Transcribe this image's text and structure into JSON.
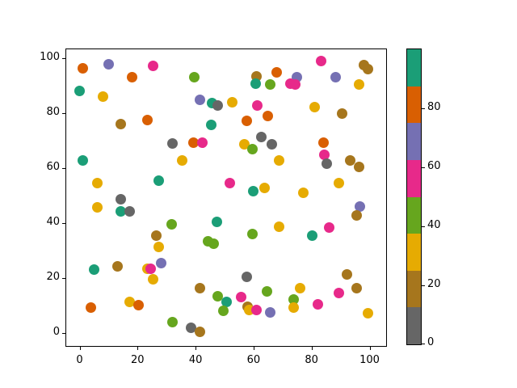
{
  "chart_data": {
    "type": "scatter",
    "title": "",
    "xlabel": "",
    "ylabel": "",
    "xlim": [
      -5,
      105
    ],
    "ylim": [
      -5,
      105
    ],
    "xticks": [
      0,
      20,
      40,
      60,
      80,
      100
    ],
    "yticks": [
      0,
      20,
      40,
      60,
      80,
      100
    ],
    "grid": false,
    "legend": "none",
    "marker": "circle",
    "palette": {
      "teal": "#1b9e77",
      "orange": "#d95f02",
      "purple": "#7570b3",
      "magenta": "#e7298a",
      "green": "#66a61e",
      "gold": "#e6ab02",
      "brown": "#a6761d",
      "gray": "#666666"
    },
    "colorbar": {
      "segments_bottom_to_top": [
        "gray",
        "brown",
        "gold",
        "green",
        "magenta",
        "purple",
        "orange",
        "teal"
      ],
      "ticks": [
        0,
        20,
        40,
        60,
        80
      ],
      "vmin": 0,
      "vmax": 100,
      "position": "right"
    },
    "points": [
      {
        "x": 1.0,
        "y": 96.4,
        "c": "orange"
      },
      {
        "x": 10.0,
        "y": 97.9,
        "c": "purple"
      },
      {
        "x": 25.3,
        "y": 97.1,
        "c": "magenta"
      },
      {
        "x": 18.2,
        "y": 93.1,
        "c": "orange"
      },
      {
        "x": 0.1,
        "y": 88.0,
        "c": "teal"
      },
      {
        "x": 8.1,
        "y": 85.9,
        "c": "gold"
      },
      {
        "x": 14.2,
        "y": 75.9,
        "c": "brown"
      },
      {
        "x": 23.3,
        "y": 77.6,
        "c": "orange"
      },
      {
        "x": 39.6,
        "y": 93.1,
        "c": "green"
      },
      {
        "x": 60.9,
        "y": 93.3,
        "c": "brown"
      },
      {
        "x": 67.9,
        "y": 95.0,
        "c": "orange"
      },
      {
        "x": 60.7,
        "y": 90.7,
        "c": "teal"
      },
      {
        "x": 65.8,
        "y": 90.4,
        "c": "green"
      },
      {
        "x": 41.6,
        "y": 85.0,
        "c": "purple"
      },
      {
        "x": 45.6,
        "y": 83.7,
        "c": "teal"
      },
      {
        "x": 47.7,
        "y": 82.9,
        "c": "gray"
      },
      {
        "x": 52.6,
        "y": 83.9,
        "c": "gold"
      },
      {
        "x": 61.2,
        "y": 82.9,
        "c": "magenta"
      },
      {
        "x": 64.9,
        "y": 79.1,
        "c": "orange"
      },
      {
        "x": 45.5,
        "y": 75.8,
        "c": "teal"
      },
      {
        "x": 57.7,
        "y": 77.1,
        "c": "orange"
      },
      {
        "x": 62.8,
        "y": 71.4,
        "c": "gray"
      },
      {
        "x": 83.2,
        "y": 98.9,
        "c": "magenta"
      },
      {
        "x": 98.0,
        "y": 97.4,
        "c": "brown"
      },
      {
        "x": 99.4,
        "y": 95.9,
        "c": "brown"
      },
      {
        "x": 75.0,
        "y": 93.1,
        "c": "purple"
      },
      {
        "x": 72.8,
        "y": 90.6,
        "c": "magenta"
      },
      {
        "x": 74.5,
        "y": 90.3,
        "c": "magenta"
      },
      {
        "x": 88.4,
        "y": 93.0,
        "c": "purple"
      },
      {
        "x": 96.5,
        "y": 90.4,
        "c": "gold"
      },
      {
        "x": 81.1,
        "y": 82.1,
        "c": "gold"
      },
      {
        "x": 90.4,
        "y": 79.9,
        "c": "brown"
      },
      {
        "x": 84.1,
        "y": 69.4,
        "c": "orange"
      },
      {
        "x": 39.4,
        "y": 69.3,
        "c": "orange"
      },
      {
        "x": 42.3,
        "y": 69.3,
        "c": "magenta"
      },
      {
        "x": 56.8,
        "y": 68.8,
        "c": "gold"
      },
      {
        "x": 31.9,
        "y": 69.0,
        "c": "gray"
      },
      {
        "x": 1.0,
        "y": 62.7,
        "c": "teal"
      },
      {
        "x": 6.1,
        "y": 54.5,
        "c": "gold"
      },
      {
        "x": 27.3,
        "y": 55.5,
        "c": "teal"
      },
      {
        "x": 14.2,
        "y": 48.6,
        "c": "gray"
      },
      {
        "x": 6.1,
        "y": 45.7,
        "c": "gold"
      },
      {
        "x": 14.2,
        "y": 44.4,
        "c": "teal"
      },
      {
        "x": 17.3,
        "y": 44.4,
        "c": "gray"
      },
      {
        "x": 31.7,
        "y": 39.7,
        "c": "green"
      },
      {
        "x": 26.4,
        "y": 35.4,
        "c": "brown"
      },
      {
        "x": 27.2,
        "y": 31.2,
        "c": "gold"
      },
      {
        "x": 59.5,
        "y": 67.0,
        "c": "green"
      },
      {
        "x": 66.3,
        "y": 68.6,
        "c": "gray"
      },
      {
        "x": 35.4,
        "y": 62.7,
        "c": "gold"
      },
      {
        "x": 68.8,
        "y": 62.7,
        "c": "gold"
      },
      {
        "x": 51.8,
        "y": 54.7,
        "c": "magenta"
      },
      {
        "x": 59.8,
        "y": 51.5,
        "c": "teal"
      },
      {
        "x": 63.9,
        "y": 52.7,
        "c": "gold"
      },
      {
        "x": 47.4,
        "y": 40.3,
        "c": "teal"
      },
      {
        "x": 68.8,
        "y": 38.7,
        "c": "gold"
      },
      {
        "x": 59.7,
        "y": 36.1,
        "c": "green"
      },
      {
        "x": 44.2,
        "y": 33.3,
        "c": "green"
      },
      {
        "x": 46.3,
        "y": 32.6,
        "c": "green"
      },
      {
        "x": 84.3,
        "y": 65.0,
        "c": "magenta"
      },
      {
        "x": 85.3,
        "y": 61.6,
        "c": "gray"
      },
      {
        "x": 93.4,
        "y": 62.7,
        "c": "brown"
      },
      {
        "x": 96.5,
        "y": 60.3,
        "c": "brown"
      },
      {
        "x": 89.4,
        "y": 54.7,
        "c": "gold"
      },
      {
        "x": 77.2,
        "y": 51.0,
        "c": "gold"
      },
      {
        "x": 96.7,
        "y": 45.9,
        "c": "purple"
      },
      {
        "x": 95.5,
        "y": 42.9,
        "c": "brown"
      },
      {
        "x": 86.2,
        "y": 38.5,
        "c": "magenta"
      },
      {
        "x": 80.2,
        "y": 35.3,
        "c": "teal"
      },
      {
        "x": 5.0,
        "y": 23.0,
        "c": "teal"
      },
      {
        "x": 13.2,
        "y": 24.3,
        "c": "brown"
      },
      {
        "x": 23.3,
        "y": 23.3,
        "c": "gold"
      },
      {
        "x": 24.5,
        "y": 23.5,
        "c": "magenta"
      },
      {
        "x": 28.2,
        "y": 25.5,
        "c": "purple"
      },
      {
        "x": 25.3,
        "y": 19.6,
        "c": "gold"
      },
      {
        "x": 4.0,
        "y": 9.3,
        "c": "orange"
      },
      {
        "x": 17.3,
        "y": 11.3,
        "c": "gold"
      },
      {
        "x": 20.2,
        "y": 10.1,
        "c": "orange"
      },
      {
        "x": 32.1,
        "y": 4.0,
        "c": "green"
      },
      {
        "x": 57.7,
        "y": 20.3,
        "c": "gray"
      },
      {
        "x": 41.6,
        "y": 16.3,
        "c": "brown"
      },
      {
        "x": 47.7,
        "y": 13.4,
        "c": "green"
      },
      {
        "x": 50.8,
        "y": 11.3,
        "c": "teal"
      },
      {
        "x": 55.8,
        "y": 13.1,
        "c": "magenta"
      },
      {
        "x": 64.6,
        "y": 15.2,
        "c": "green"
      },
      {
        "x": 49.7,
        "y": 8.1,
        "c": "green"
      },
      {
        "x": 57.9,
        "y": 9.6,
        "c": "brown"
      },
      {
        "x": 58.6,
        "y": 8.4,
        "c": "gold"
      },
      {
        "x": 60.9,
        "y": 8.4,
        "c": "magenta"
      },
      {
        "x": 65.8,
        "y": 7.4,
        "c": "purple"
      },
      {
        "x": 38.4,
        "y": 1.8,
        "c": "gray"
      },
      {
        "x": 41.6,
        "y": 0.3,
        "c": "brown"
      },
      {
        "x": 92.3,
        "y": 21.2,
        "c": "brown"
      },
      {
        "x": 76.0,
        "y": 16.3,
        "c": "gold"
      },
      {
        "x": 95.5,
        "y": 16.2,
        "c": "brown"
      },
      {
        "x": 89.5,
        "y": 14.5,
        "c": "magenta"
      },
      {
        "x": 73.9,
        "y": 12.1,
        "c": "green"
      },
      {
        "x": 73.9,
        "y": 9.3,
        "c": "gold"
      },
      {
        "x": 82.3,
        "y": 10.3,
        "c": "magenta"
      },
      {
        "x": 99.4,
        "y": 7.1,
        "c": "gold"
      }
    ]
  }
}
